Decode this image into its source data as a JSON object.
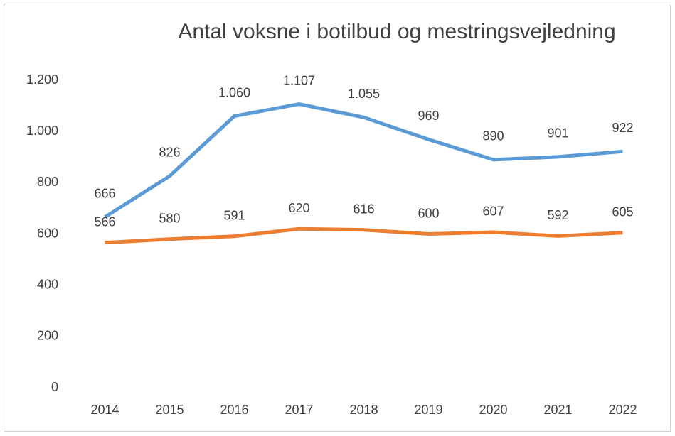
{
  "chart_data": {
    "type": "line",
    "title": "Antal voksne i botilbud og mestringsvejledning",
    "categories": [
      "2014",
      "2015",
      "2016",
      "2017",
      "2018",
      "2019",
      "2020",
      "2021",
      "2022"
    ],
    "series": [
      {
        "color": "#5b9bd5",
        "values": [
          666,
          826,
          1060,
          1107,
          1055,
          969,
          890,
          901,
          922
        ],
        "value_labels": [
          "666",
          "826",
          "1.060",
          "1.107",
          "1.055",
          "969",
          "890",
          "901",
          "922"
        ]
      },
      {
        "color": "#ed7d31",
        "values": [
          566,
          580,
          591,
          620,
          616,
          600,
          607,
          592,
          605
        ]
      }
    ],
    "ylim": [
      0,
      1200
    ],
    "yticks": [
      0,
      200,
      400,
      600,
      800,
      {
        "value": 1000,
        "label": "1.000"
      },
      {
        "value": 1200,
        "label": "1.200"
      }
    ],
    "grid": false
  }
}
